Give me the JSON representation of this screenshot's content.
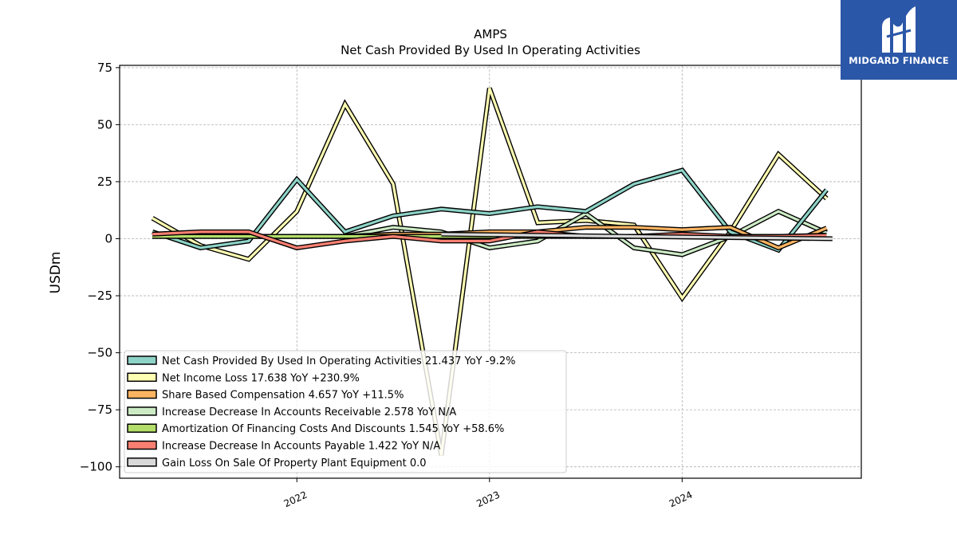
{
  "brand": {
    "name": "MIDGARD FINANCE",
    "bg": "#2b57a8"
  },
  "chart_data": {
    "type": "line",
    "title": "AMPS",
    "subtitle": "Net Cash Provided By Used In Operating Activities",
    "ylabel": "USDm",
    "xlabel": "",
    "ylim": [
      -105,
      76
    ],
    "xlim": [
      2021.08,
      2024.93
    ],
    "yticks": [
      75,
      50,
      25,
      0,
      -25,
      -50,
      -75,
      -100
    ],
    "ytick_labels": [
      "75",
      "50",
      "25",
      "0",
      "−25",
      "−50",
      "−75",
      "−100"
    ],
    "xticks": [
      2022,
      2023,
      2024
    ],
    "xtick_labels": [
      "2022",
      "2023",
      "2024"
    ],
    "grid": true,
    "legend_position": "lower-left",
    "x": [
      2021.25,
      2021.5,
      2021.75,
      2022.0,
      2022.25,
      2022.5,
      2022.75,
      2023.0,
      2023.25,
      2023.5,
      2023.75,
      2024.0,
      2024.25,
      2024.5,
      2024.75
    ],
    "series": [
      {
        "name": "Net Income Loss",
        "legend": "Net Income Loss  17.638 YoY +230.9%",
        "color": "#ffffb3",
        "values": [
          9,
          -3,
          -9,
          12,
          59,
          24,
          -95,
          66,
          7,
          8,
          6,
          -26,
          3,
          37,
          17.6
        ]
      },
      {
        "name": "Increase Decrease In Accounts Receivable",
        "legend": "Increase Decrease In Accounts Receivable  2.578 YoY N/A",
        "color": "#ccebc5",
        "values": [
          1,
          2,
          1,
          1,
          1,
          5,
          3,
          -4,
          -1,
          11,
          -4,
          -7,
          1,
          12,
          2.6
        ]
      },
      {
        "name": "Net Cash Provided By Used In Operating Activities",
        "legend": "Net Cash Provided By Used In Operating Activities  21.437 YoY -9.2%",
        "color": "#8dd3c7",
        "values": [
          3,
          -4,
          -1,
          26,
          3,
          10,
          13,
          11,
          14,
          12,
          24,
          30,
          3,
          -5,
          21.4
        ]
      },
      {
        "name": "Share Based Compensation",
        "legend": "Share Based Compensation  4.657 YoY +11.5%",
        "color": "#fdb462",
        "values": [
          1,
          1,
          1,
          1,
          1,
          2,
          2,
          3,
          3,
          5,
          5,
          4,
          5,
          -4,
          4.7
        ]
      },
      {
        "name": "Amortization Of Financing Costs And Discounts",
        "legend": "Amortization Of Financing Costs And Discounts  1.545 YoY +58.6%",
        "color": "#b3de69",
        "values": [
          1,
          1,
          1,
          1,
          1,
          1,
          1,
          1,
          1,
          1,
          1,
          1,
          1,
          1,
          1.5
        ]
      },
      {
        "name": "Increase Decrease In Accounts Payable",
        "legend": "Increase Decrease In Accounts Payable  1.422 YoY N/A",
        "color": "#fb8072",
        "values": [
          2,
          3,
          3,
          -4,
          -1,
          1,
          -1,
          -1,
          3,
          1,
          1,
          2,
          1,
          1,
          1.4
        ]
      },
      {
        "name": "Gain Loss On Sale Of Property Plant Equipment",
        "legend": "Gain Loss On Sale Of Property Plant Equipment  0.0",
        "color": "#d9d9d9",
        "x": [
          2022.75,
          2024.78
        ],
        "values": [
          2,
          0
        ]
      }
    ],
    "legend_order": [
      "Net Cash Provided By Used In Operating Activities",
      "Net Income Loss",
      "Share Based Compensation",
      "Increase Decrease In Accounts Receivable",
      "Amortization Of Financing Costs And Discounts",
      "Increase Decrease In Accounts Payable",
      "Gain Loss On Sale Of Property Plant Equipment"
    ]
  }
}
